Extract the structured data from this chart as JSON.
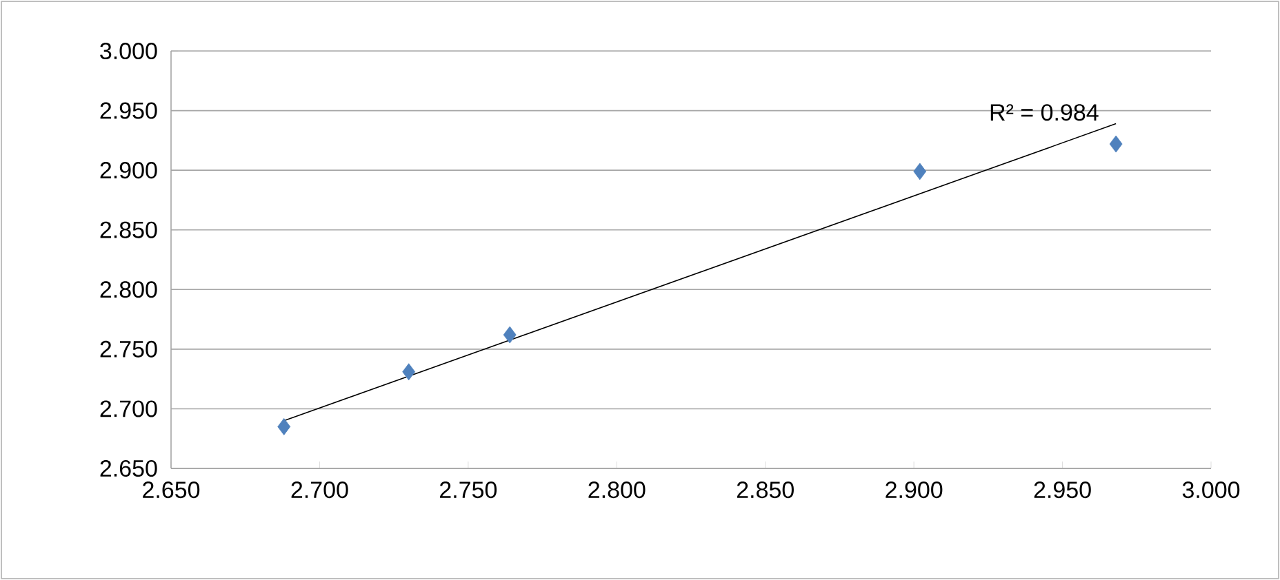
{
  "chart_data": {
    "type": "scatter",
    "grid": "y",
    "x": [
      2.688,
      2.73,
      2.764,
      2.902,
      2.968
    ],
    "series": [
      {
        "marker": "diamond",
        "color": "#4f81bd",
        "values": [
          2.685,
          2.731,
          2.762,
          2.899,
          2.922
        ]
      },
      {
        "type": "line",
        "marker": "none",
        "color": "#000000",
        "x": [
          2.688,
          2.968
        ],
        "values": [
          2.69,
          2.939
        ]
      }
    ],
    "annotations": [
      "R² = 0.984"
    ],
    "xlim": [
      2.65,
      3.0
    ],
    "ylim": [
      2.65,
      3.0
    ],
    "xticks": [
      {
        "value": 2.65,
        "label": "2.650"
      },
      {
        "value": 2.7,
        "label": "2.700"
      },
      {
        "value": 2.75,
        "label": "2.750"
      },
      {
        "value": 2.8,
        "label": "2.800"
      },
      {
        "value": 2.85,
        "label": "2.850"
      },
      {
        "value": 2.9,
        "label": "2.900"
      },
      {
        "value": 2.95,
        "label": "2.950"
      },
      {
        "value": 3.0,
        "label": "3.000"
      }
    ],
    "yticks": [
      {
        "value": 2.65,
        "label": "2.650"
      },
      {
        "value": 2.7,
        "label": "2.700"
      },
      {
        "value": 2.75,
        "label": "2.750"
      },
      {
        "value": 2.8,
        "label": "2.800"
      },
      {
        "value": 2.85,
        "label": "2.850"
      },
      {
        "value": 2.9,
        "label": "2.900"
      },
      {
        "value": 2.95,
        "label": "2.950"
      },
      {
        "value": 3.0,
        "label": "3.000"
      }
    ]
  }
}
